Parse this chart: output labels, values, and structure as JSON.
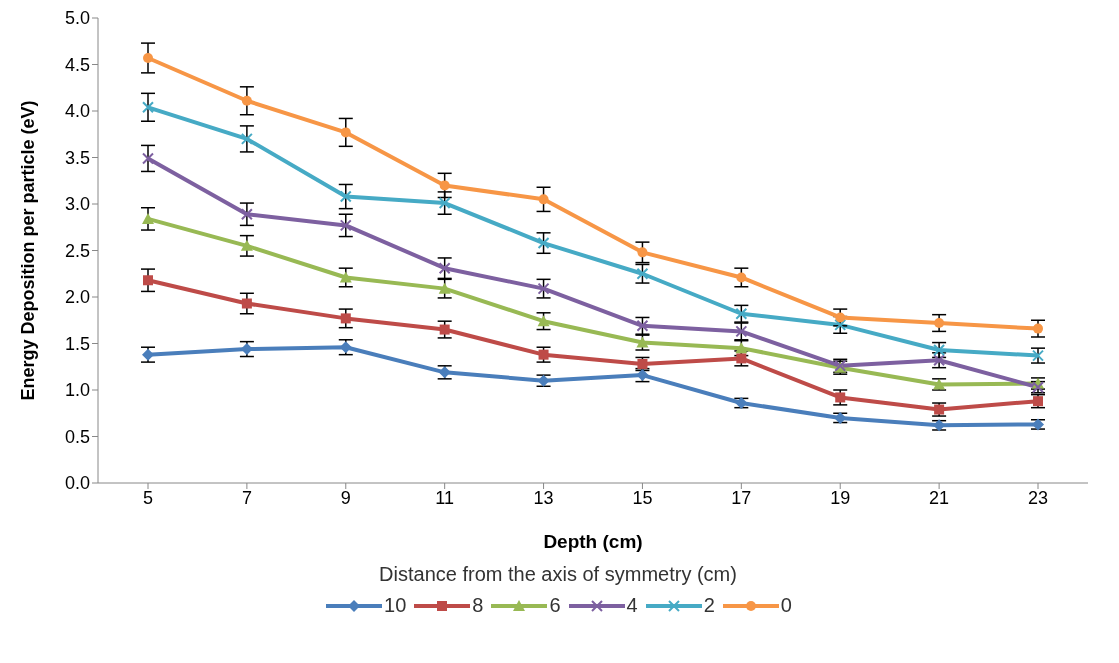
{
  "chart_data": {
    "type": "line",
    "xlabel": "Depth (cm)",
    "ylabel": "Energy Deposition per particle (eV)",
    "legend_title": "Distance from the axis of symmetry (cm)",
    "categories": [
      "5",
      "7",
      "9",
      "11",
      "13",
      "15",
      "17",
      "19",
      "21",
      "23"
    ],
    "series": [
      {
        "name": "10",
        "color": "#4a7ebb",
        "marker": "diamond",
        "values": [
          1.38,
          1.44,
          1.46,
          1.19,
          1.1,
          1.16,
          0.86,
          0.7,
          0.62,
          0.63
        ],
        "errors": [
          0.08,
          0.08,
          0.08,
          0.07,
          0.06,
          0.07,
          0.05,
          0.05,
          0.05,
          0.05
        ]
      },
      {
        "name": "8",
        "color": "#be4b48",
        "marker": "square",
        "values": [
          2.18,
          1.93,
          1.77,
          1.65,
          1.38,
          1.28,
          1.34,
          0.92,
          0.79,
          0.88
        ],
        "errors": [
          0.12,
          0.11,
          0.1,
          0.09,
          0.08,
          0.07,
          0.08,
          0.08,
          0.07,
          0.07
        ]
      },
      {
        "name": "6",
        "color": "#98b954",
        "marker": "triangle",
        "values": [
          2.84,
          2.55,
          2.21,
          2.09,
          1.74,
          1.51,
          1.45,
          1.24,
          1.06,
          1.07
        ],
        "errors": [
          0.12,
          0.11,
          0.1,
          0.1,
          0.09,
          0.08,
          0.08,
          0.07,
          0.06,
          0.06
        ]
      },
      {
        "name": "4",
        "color": "#7d60a0",
        "marker": "cross",
        "values": [
          3.49,
          2.89,
          2.77,
          2.31,
          2.09,
          1.69,
          1.63,
          1.26,
          1.32,
          1.03
        ],
        "errors": [
          0.14,
          0.12,
          0.12,
          0.11,
          0.1,
          0.09,
          0.09,
          0.07,
          0.08,
          0.06
        ]
      },
      {
        "name": "2",
        "color": "#46aac5",
        "marker": "cross",
        "values": [
          4.04,
          3.7,
          3.08,
          3.01,
          2.58,
          2.25,
          1.82,
          1.7,
          1.43,
          1.37
        ],
        "errors": [
          0.15,
          0.14,
          0.13,
          0.12,
          0.11,
          0.1,
          0.09,
          0.09,
          0.08,
          0.08
        ]
      },
      {
        "name": "0",
        "color": "#f79646",
        "marker": "circle",
        "values": [
          4.57,
          4.11,
          3.77,
          3.2,
          3.05,
          2.48,
          2.21,
          1.78,
          1.72,
          1.66
        ],
        "errors": [
          0.16,
          0.15,
          0.15,
          0.13,
          0.13,
          0.11,
          0.1,
          0.09,
          0.09,
          0.09
        ]
      }
    ],
    "ylim": [
      0,
      5
    ],
    "yticks": [
      {
        "value": 0,
        "label": "0.0"
      },
      {
        "value": 0.5,
        "label": "0.5"
      },
      {
        "value": 1,
        "label": "1.0"
      },
      {
        "value": 1.5,
        "label": "1.5"
      },
      {
        "value": 2,
        "label": "2.0"
      },
      {
        "value": 2.5,
        "label": "2.5"
      },
      {
        "value": 3,
        "label": "3.0"
      },
      {
        "value": 3.5,
        "label": "3.5"
      },
      {
        "value": 4,
        "label": "4.0"
      },
      {
        "value": 4.5,
        "label": "4.5"
      },
      {
        "value": 5,
        "label": "5.0"
      }
    ],
    "grid": false,
    "legend": "bottom",
    "line_style": "solid"
  }
}
